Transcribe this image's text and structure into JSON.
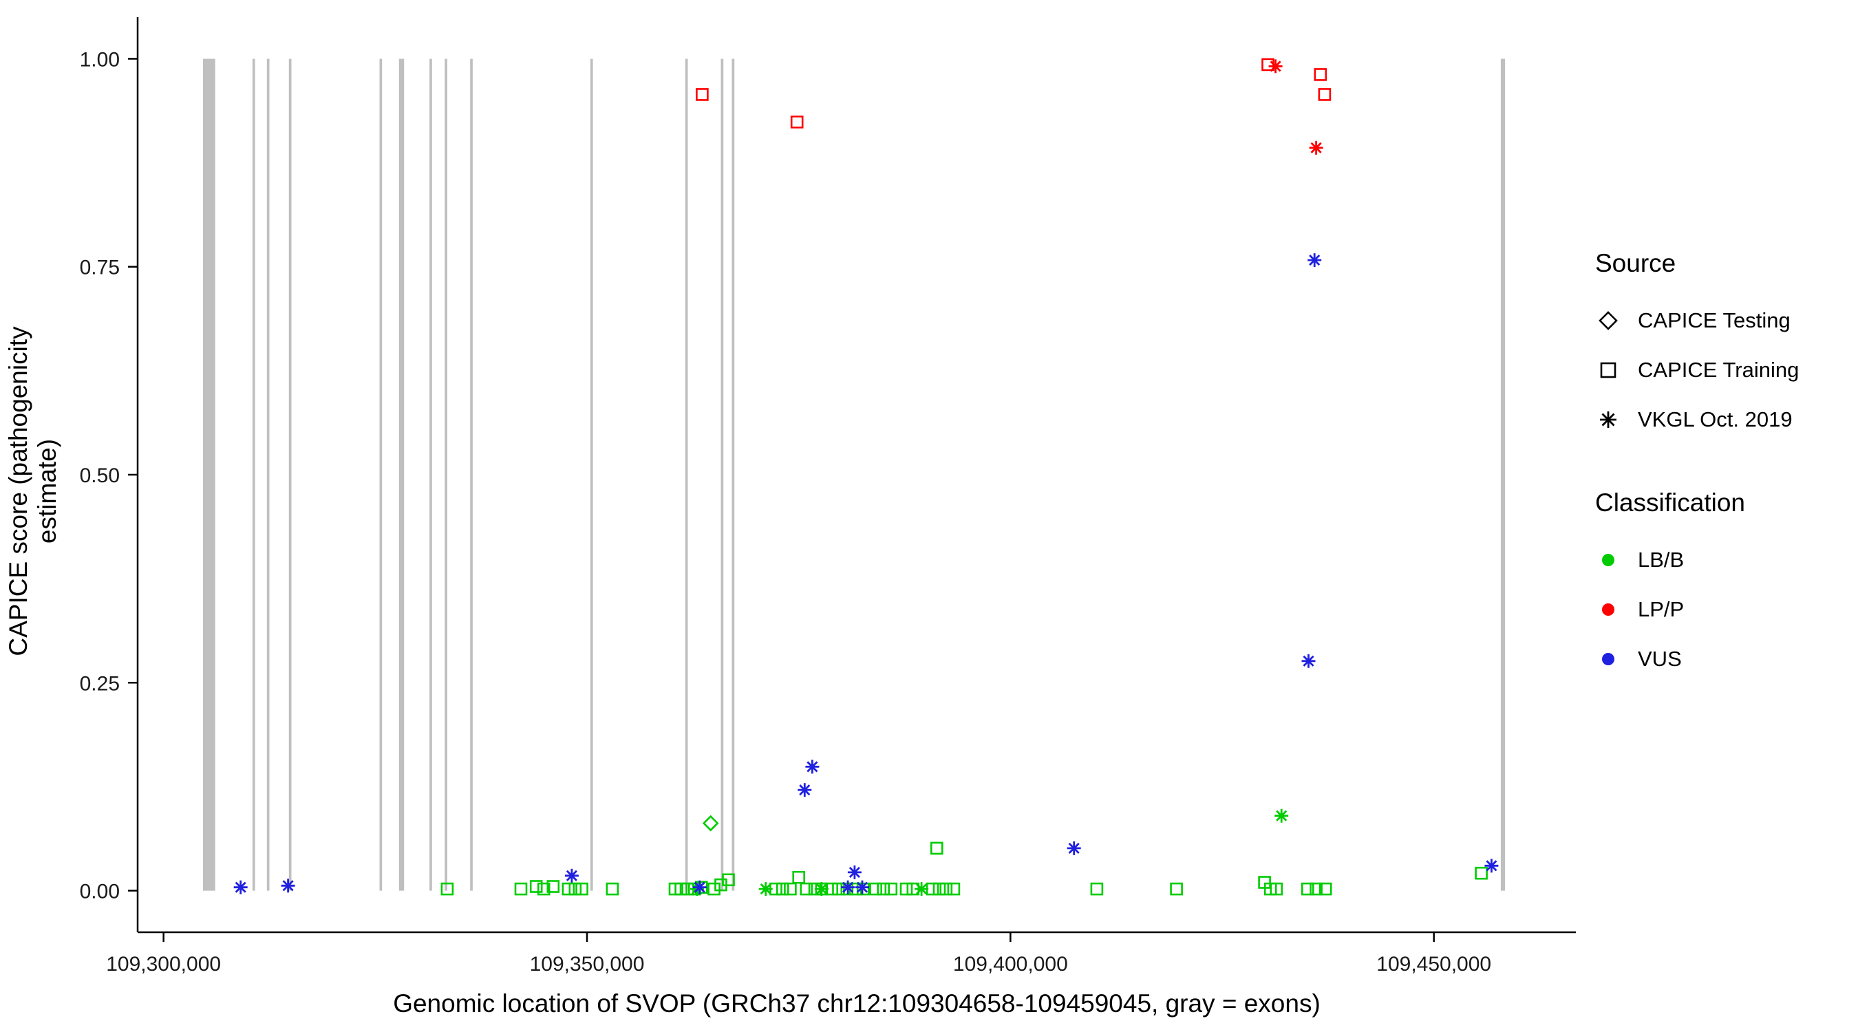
{
  "figure": {
    "background": "#ffffff",
    "axis_color": "#000000",
    "text_color": "#1a1a1a"
  },
  "chart_data": {
    "type": "scatter",
    "title": "",
    "xlabel": "Genomic location of SVOP (GRCh37 chr12:109304658-109459045, gray = exons)",
    "ylabel": "CAPICE score (pathogenicity estimate)",
    "xlim": [
      109296939,
      109466764
    ],
    "ylim": [
      -0.05,
      1.05
    ],
    "grid": false,
    "legend_position": "right",
    "exon_color": "#bfbfbf",
    "x_ticks": [
      {
        "value": 109300000,
        "label": "109,300,000"
      },
      {
        "value": 109350000,
        "label": "109,350,000"
      },
      {
        "value": 109400000,
        "label": "109,400,000"
      },
      {
        "value": 109450000,
        "label": "109,450,000"
      }
    ],
    "y_ticks": [
      {
        "value": 0.0,
        "label": "0.00"
      },
      {
        "value": 0.25,
        "label": "0.25"
      },
      {
        "value": 0.5,
        "label": "0.50"
      },
      {
        "value": 0.75,
        "label": "0.75"
      },
      {
        "value": 1.0,
        "label": "1.00"
      }
    ],
    "exons": [
      [
        109304658,
        109306100
      ],
      [
        109310500,
        109310800
      ],
      [
        109312200,
        109312500
      ],
      [
        109314800,
        109315100
      ],
      [
        109325500,
        109325800
      ],
      [
        109327800,
        109328400
      ],
      [
        109331400,
        109331700
      ],
      [
        109333200,
        109333500
      ],
      [
        109336200,
        109336500
      ],
      [
        109350400,
        109350700
      ],
      [
        109361600,
        109361900
      ],
      [
        109365800,
        109366100
      ],
      [
        109367100,
        109367400
      ],
      [
        109457900,
        109458400
      ]
    ],
    "series": [
      {
        "name": "CAPICE Testing LB/B",
        "source": "CAPICE Testing",
        "classification": "LB/B",
        "marker": "diamond",
        "color": "#00cc00",
        "points": [
          [
            109364600,
            0.081
          ]
        ]
      },
      {
        "name": "CAPICE Training LB/B",
        "source": "CAPICE Training",
        "classification": "LB/B",
        "marker": "square",
        "color": "#00cc00",
        "points": [
          [
            109333500,
            0.002
          ],
          [
            109342200,
            0.002
          ],
          [
            109344000,
            0.005
          ],
          [
            109344900,
            0.002
          ],
          [
            109346000,
            0.005
          ],
          [
            109347800,
            0.002
          ],
          [
            109348600,
            0.002
          ],
          [
            109349400,
            0.002
          ],
          [
            109353000,
            0.002
          ],
          [
            109360400,
            0.002
          ],
          [
            109361100,
            0.002
          ],
          [
            109361900,
            0.002
          ],
          [
            109362700,
            0.002
          ],
          [
            109363500,
            0.004
          ],
          [
            109365000,
            0.002
          ],
          [
            109365800,
            0.007
          ],
          [
            109366700,
            0.013
          ],
          [
            109372300,
            0.002
          ],
          [
            109373100,
            0.002
          ],
          [
            109374000,
            0.002
          ],
          [
            109375000,
            0.016
          ],
          [
            109375900,
            0.002
          ],
          [
            109376900,
            0.002
          ],
          [
            109377700,
            0.002
          ],
          [
            109378900,
            0.002
          ],
          [
            109379700,
            0.002
          ],
          [
            109380700,
            0.002
          ],
          [
            109381700,
            0.002
          ],
          [
            109382600,
            0.002
          ],
          [
            109384100,
            0.002
          ],
          [
            109385000,
            0.002
          ],
          [
            109385900,
            0.002
          ],
          [
            109387700,
            0.002
          ],
          [
            109388500,
            0.002
          ],
          [
            109390800,
            0.002
          ],
          [
            109391600,
            0.002
          ],
          [
            109392400,
            0.002
          ],
          [
            109393300,
            0.002
          ],
          [
            109391300,
            0.051
          ],
          [
            109410200,
            0.002
          ],
          [
            109419600,
            0.002
          ],
          [
            109430000,
            0.01
          ],
          [
            109430700,
            0.002
          ],
          [
            109431400,
            0.002
          ],
          [
            109435100,
            0.002
          ],
          [
            109436100,
            0.002
          ],
          [
            109437200,
            0.002
          ],
          [
            109455600,
            0.021
          ]
        ]
      },
      {
        "name": "CAPICE Training LP/P",
        "source": "CAPICE Training",
        "classification": "LP/P",
        "marker": "square",
        "color": "#ff0000",
        "points": [
          [
            109363600,
            0.957
          ],
          [
            109374800,
            0.924
          ],
          [
            109430400,
            0.993
          ],
          [
            109436600,
            0.981
          ],
          [
            109437100,
            0.957
          ]
        ]
      },
      {
        "name": "VKGL Oct. 2019 LB/B",
        "source": "VKGL Oct. 2019",
        "classification": "LB/B",
        "marker": "asterisk",
        "color": "#00cc00",
        "points": [
          [
            109363000,
            0.002
          ],
          [
            109371100,
            0.002
          ],
          [
            109377700,
            0.002
          ],
          [
            109389500,
            0.002
          ],
          [
            109432000,
            0.09
          ]
        ]
      },
      {
        "name": "VKGL Oct. 2019 LP/P",
        "source": "VKGL Oct. 2019",
        "classification": "LP/P",
        "marker": "asterisk",
        "color": "#ff0000",
        "points": [
          [
            109431300,
            0.991
          ],
          [
            109436100,
            0.893
          ]
        ]
      },
      {
        "name": "VKGL Oct. 2019 VUS",
        "source": "VKGL Oct. 2019",
        "classification": "VUS",
        "marker": "asterisk",
        "color": "#2020e0",
        "points": [
          [
            109309100,
            0.004
          ],
          [
            109314700,
            0.006
          ],
          [
            109348200,
            0.018
          ],
          [
            109363300,
            0.004
          ],
          [
            109375700,
            0.121
          ],
          [
            109376600,
            0.149
          ],
          [
            109380800,
            0.004
          ],
          [
            109381600,
            0.022
          ],
          [
            109382500,
            0.004
          ],
          [
            109407500,
            0.051
          ],
          [
            109435200,
            0.276
          ],
          [
            109435900,
            0.758
          ],
          [
            109456800,
            0.03
          ]
        ]
      }
    ],
    "legend": {
      "source": {
        "title": "Source",
        "items": [
          {
            "label": "CAPICE Testing",
            "marker": "diamond"
          },
          {
            "label": "CAPICE Training",
            "marker": "square"
          },
          {
            "label": "VKGL Oct. 2019",
            "marker": "asterisk"
          }
        ]
      },
      "classification": {
        "title": "Classification",
        "items": [
          {
            "label": "LB/B",
            "color": "#00cc00"
          },
          {
            "label": "LP/P",
            "color": "#ff0000"
          },
          {
            "label": "VUS",
            "color": "#2020e0"
          }
        ]
      }
    }
  }
}
